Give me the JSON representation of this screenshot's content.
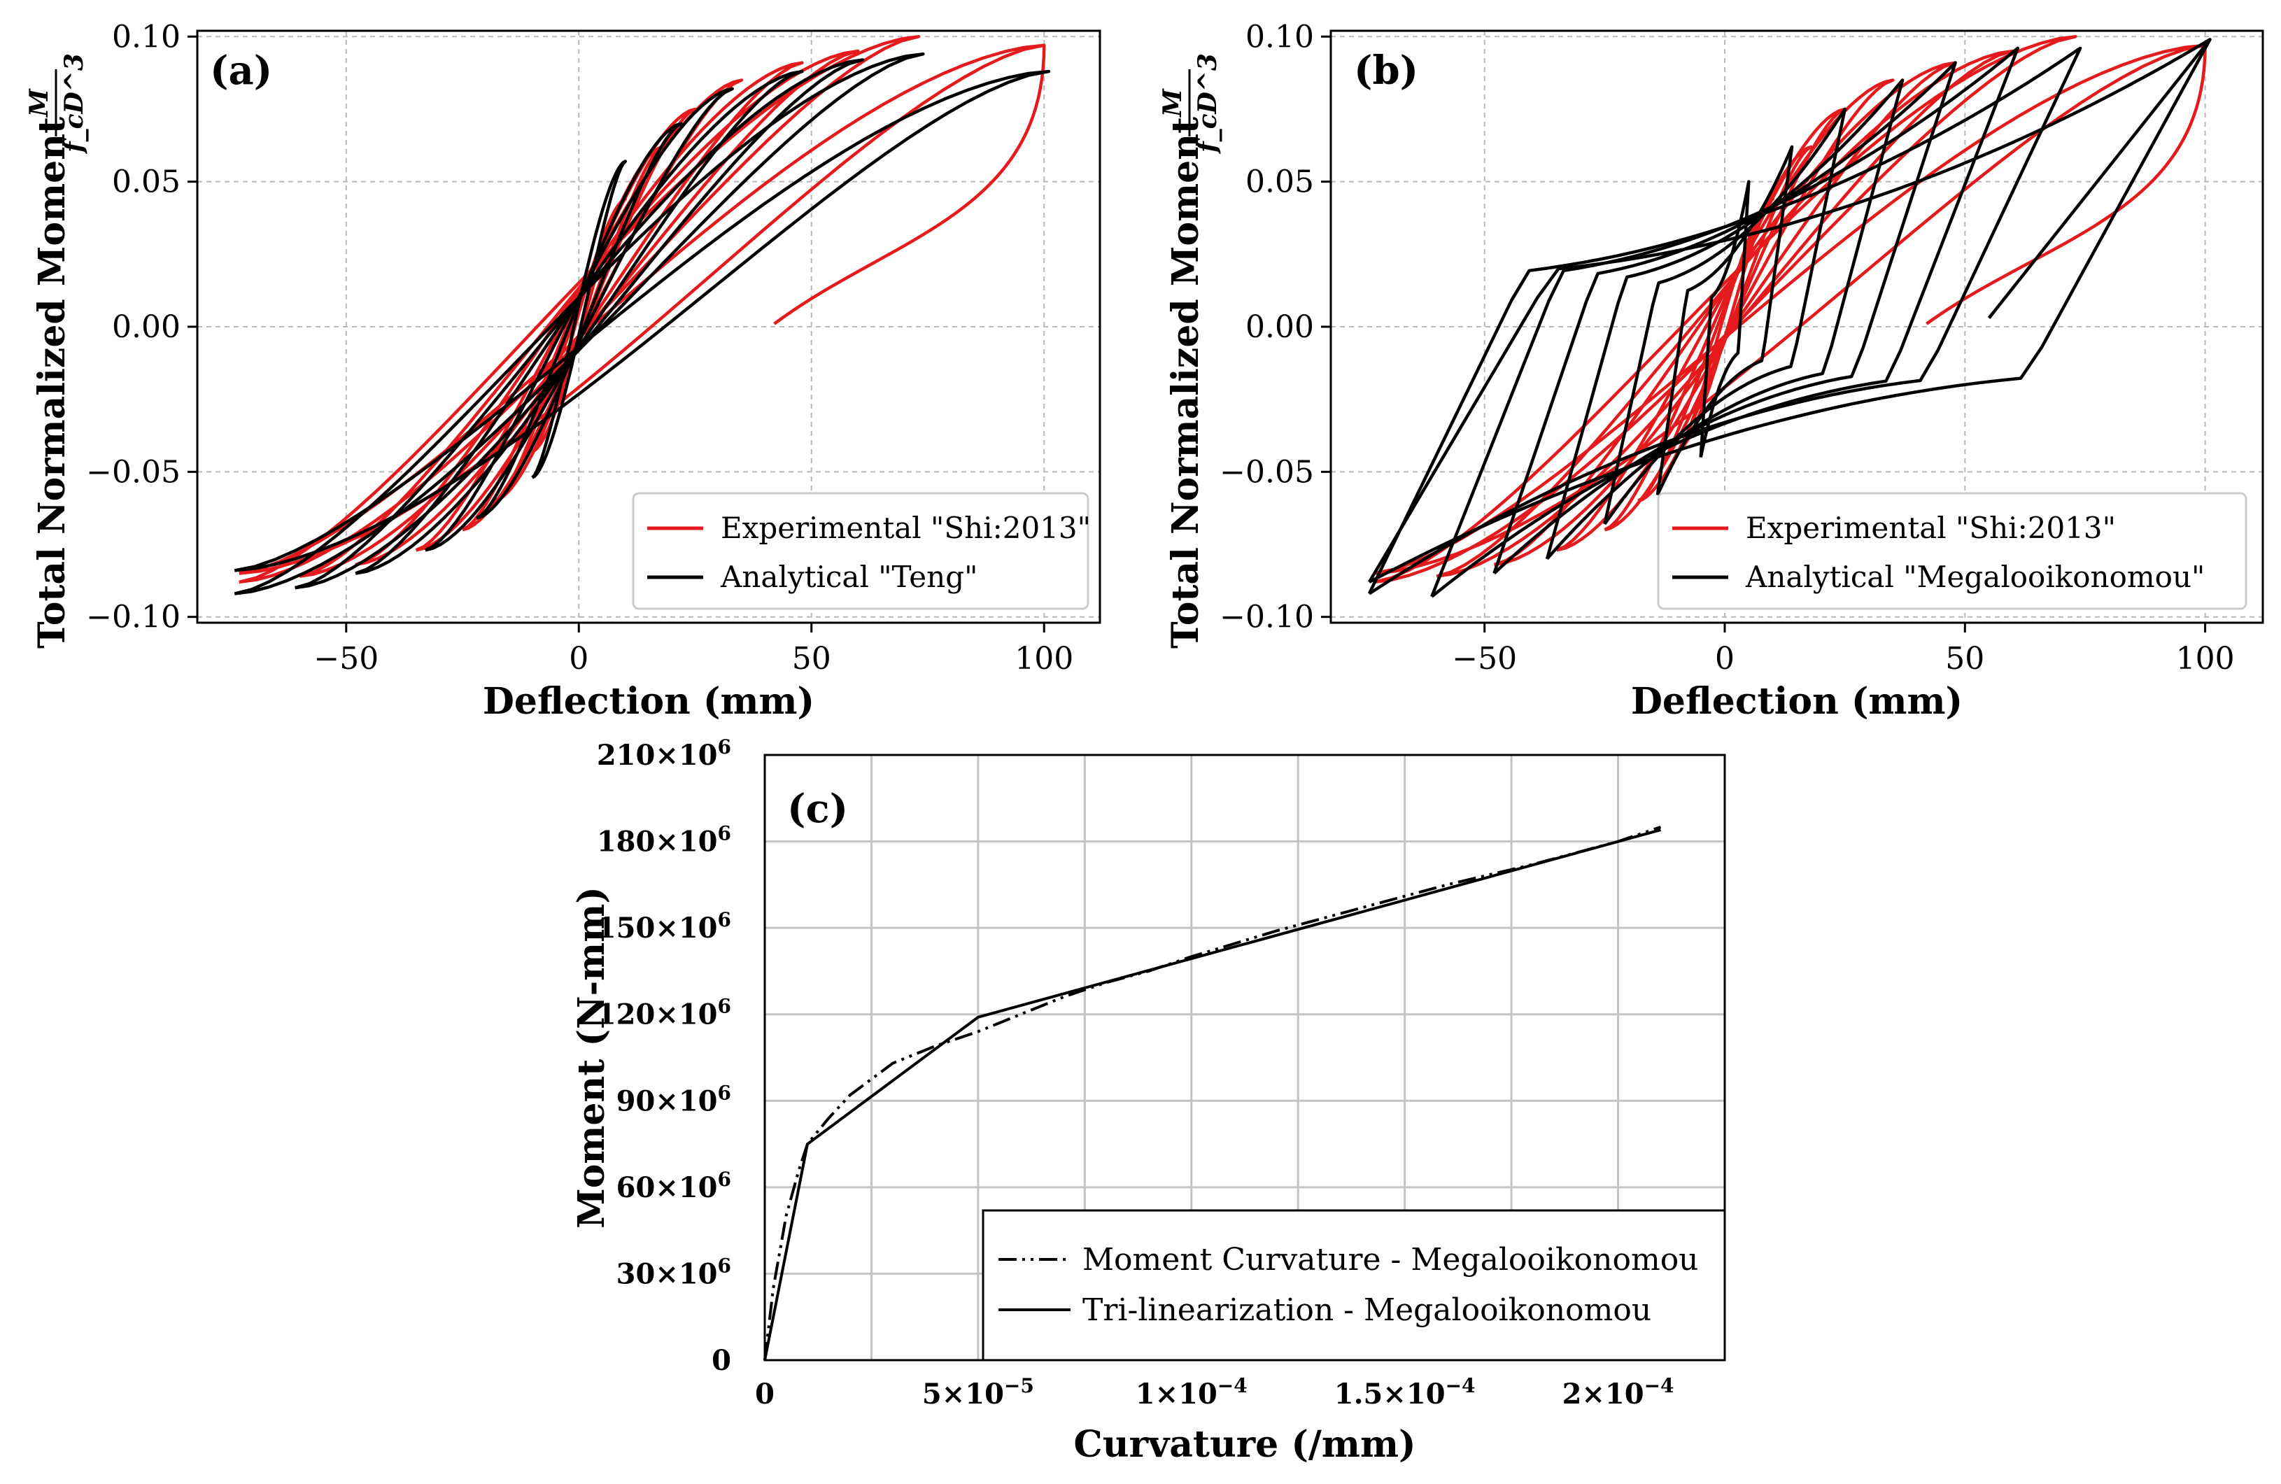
{
  "charts": [
    {
      "id": "a",
      "type": "line",
      "panel_label": "(a)",
      "xlabel": "Deflection (mm)",
      "ylabel": "Total Normalized Moment",
      "ylabel_fraction": {
        "numerator": "M",
        "denominator": "f_cD^3"
      },
      "xlim": [
        -82,
        112
      ],
      "ylim": [
        -0.102,
        0.102
      ],
      "x_ticks": [
        {
          "value": -50,
          "label": "−50"
        },
        {
          "value": 0,
          "label": "0"
        },
        {
          "value": 50,
          "label": "50"
        },
        {
          "value": 100,
          "label": "100"
        }
      ],
      "y_ticks": [
        {
          "value": -0.1,
          "label": "−0.10"
        },
        {
          "value": -0.05,
          "label": "−0.05"
        },
        {
          "value": 0,
          "label": "0.00"
        },
        {
          "value": 0.05,
          "label": "0.05"
        },
        {
          "value": 0.1,
          "label": "0.10"
        }
      ],
      "grid": true,
      "legend_position": "bottom-right",
      "series": [
        {
          "name": "Experimental \"Shi:2013\"",
          "color": "#e41a1c",
          "loops": [
            {
              "xmax": 10,
              "ymax": 0.044,
              "xmin": -10,
              "ymin": -0.043
            },
            {
              "xmax": 18,
              "ymax": 0.062,
              "xmin": -18,
              "ymin": -0.06
            },
            {
              "xmax": 25,
              "ymax": 0.075,
              "xmin": -25,
              "ymin": -0.07
            },
            {
              "xmax": 35,
              "ymax": 0.085,
              "xmin": -35,
              "ymin": -0.077
            },
            {
              "xmax": 48,
              "ymax": 0.091,
              "xmin": -48,
              "ymin": -0.082
            },
            {
              "xmax": 60,
              "ymax": 0.095,
              "xmin": -60,
              "ymin": -0.086
            },
            {
              "xmax": 73,
              "ymax": 0.1,
              "xmin": -73,
              "ymin": -0.088
            },
            {
              "xmax": 100,
              "ymax": 0.097,
              "xmin": -73,
              "ymin": -0.085
            }
          ],
          "unloading_tail": {
            "from_x": 100,
            "from_y": 0.097,
            "to_x": 42,
            "to_y": 0.001
          }
        },
        {
          "name": "Analytical \"Teng\"",
          "color": "#000000",
          "loops": [
            {
              "xmax": 10,
              "ymax": 0.057,
              "xmin": -10,
              "ymin": -0.052
            },
            {
              "xmax": 22,
              "ymax": 0.07,
              "xmin": -22,
              "ymin": -0.066
            },
            {
              "xmax": 33,
              "ymax": 0.082,
              "xmin": -33,
              "ymin": -0.077
            },
            {
              "xmax": 48,
              "ymax": 0.088,
              "xmin": -48,
              "ymin": -0.085
            },
            {
              "xmax": 61,
              "ymax": 0.092,
              "xmin": -61,
              "ymin": -0.09
            },
            {
              "xmax": 74,
              "ymax": 0.094,
              "xmin": -74,
              "ymin": -0.092
            },
            {
              "xmax": 101,
              "ymax": 0.088,
              "xmin": -74,
              "ymin": -0.084
            }
          ]
        }
      ]
    },
    {
      "id": "b",
      "type": "line",
      "panel_label": "(b)",
      "xlabel": "Deflection (mm)",
      "ylabel": "Total Normalized Moment",
      "ylabel_fraction": {
        "numerator": "M",
        "denominator": "f_cD^3"
      },
      "xlim": [
        -82,
        112
      ],
      "ylim": [
        -0.102,
        0.102
      ],
      "x_ticks": [
        {
          "value": -50,
          "label": "−50"
        },
        {
          "value": 0,
          "label": "0"
        },
        {
          "value": 50,
          "label": "50"
        },
        {
          "value": 100,
          "label": "100"
        }
      ],
      "y_ticks": [
        {
          "value": -0.1,
          "label": "−0.10"
        },
        {
          "value": -0.05,
          "label": "−0.05"
        },
        {
          "value": 0,
          "label": "0.00"
        },
        {
          "value": 0.05,
          "label": "0.05"
        },
        {
          "value": 0.1,
          "label": "0.10"
        }
      ],
      "grid": true,
      "legend_position": "bottom-right",
      "series": [
        {
          "name": "Experimental \"Shi:2013\"",
          "color": "#e41a1c",
          "loops": [
            {
              "xmax": 10,
              "ymax": 0.044,
              "xmin": -10,
              "ymin": -0.043
            },
            {
              "xmax": 18,
              "ymax": 0.062,
              "xmin": -18,
              "ymin": -0.06
            },
            {
              "xmax": 25,
              "ymax": 0.075,
              "xmin": -25,
              "ymin": -0.07
            },
            {
              "xmax": 35,
              "ymax": 0.085,
              "xmin": -35,
              "ymin": -0.077
            },
            {
              "xmax": 48,
              "ymax": 0.091,
              "xmin": -48,
              "ymin": -0.082
            },
            {
              "xmax": 60,
              "ymax": 0.095,
              "xmin": -60,
              "ymin": -0.086
            },
            {
              "xmax": 73,
              "ymax": 0.1,
              "xmin": -73,
              "ymin": -0.088
            },
            {
              "xmax": 100,
              "ymax": 0.097,
              "xmin": -73,
              "ymin": -0.085
            }
          ],
          "unloading_tail": {
            "from_x": 100,
            "from_y": 0.097,
            "to_x": 42,
            "to_y": 0.001
          }
        },
        {
          "name": "Analytical \"Megalooikonomou\"",
          "color": "#000000",
          "piecewise": true,
          "loops": [
            {
              "xmax": 5,
              "ymax": 0.05,
              "xmin": -5,
              "ymin": -0.045
            },
            {
              "xmax": 14,
              "ymax": 0.062,
              "xmin": -14,
              "ymin": -0.058
            },
            {
              "xmax": 25,
              "ymax": 0.075,
              "xmin": -25,
              "ymin": -0.068
            },
            {
              "xmax": 37,
              "ymax": 0.085,
              "xmin": -37,
              "ymin": -0.08
            },
            {
              "xmax": 48,
              "ymax": 0.091,
              "xmin": -48,
              "ymin": -0.085
            },
            {
              "xmax": 61,
              "ymax": 0.096,
              "xmin": -61,
              "ymin": -0.093
            },
            {
              "xmax": 74,
              "ymax": 0.096,
              "xmin": -74,
              "ymin": -0.092
            },
            {
              "xmax": 101,
              "ymax": 0.099,
              "xmin": -74,
              "ymin": -0.088
            }
          ],
          "unloading_tail": {
            "from_x": 101,
            "from_y": 0.099,
            "to_x": 55,
            "to_y": 0.003
          }
        }
      ]
    },
    {
      "id": "c",
      "type": "line",
      "panel_label": "(c)",
      "xlabel": "Curvature (/mm)",
      "ylabel": "Moment (N-mm)",
      "xlim": [
        0,
        0.000225
      ],
      "ylim": [
        0,
        210000000
      ],
      "x_ticks": [
        {
          "value": 0,
          "label": "0"
        },
        {
          "value": 5e-05,
          "mant": "5×10",
          "exp": "−5"
        },
        {
          "value": 0.0001,
          "mant": "1×10",
          "exp": "−4"
        },
        {
          "value": 0.00015,
          "mant": "1.5×10",
          "exp": "−4"
        },
        {
          "value": 0.0002,
          "mant": "2×10",
          "exp": "−4"
        }
      ],
      "x_grid_step": 2.5e-05,
      "y_ticks": [
        {
          "value": 0,
          "label": "0"
        },
        {
          "value": 30000000,
          "mant": "30×10",
          "exp": "6"
        },
        {
          "value": 60000000,
          "mant": "60×10",
          "exp": "6"
        },
        {
          "value": 90000000,
          "mant": "90×10",
          "exp": "6"
        },
        {
          "value": 120000000,
          "mant": "120×10",
          "exp": "6"
        },
        {
          "value": 150000000,
          "mant": "150×10",
          "exp": "6"
        },
        {
          "value": 180000000,
          "mant": "180×10",
          "exp": "6"
        },
        {
          "value": 210000000,
          "mant": "210×10",
          "exp": "6"
        }
      ],
      "grid": true,
      "legend_position": "bottom-right",
      "series": [
        {
          "name": "Moment Curvature - Megalooikonomou",
          "color": "#000000",
          "style": "dash-dot-dot",
          "x": [
            0,
            2e-06,
            5e-06,
            8e-06,
            1e-05,
            1.5e-05,
            2e-05,
            3e-05,
            4e-05,
            5e-05,
            6e-05,
            7e-05,
            8e-05,
            9e-05,
            0.0001,
            0.00012,
            0.00014,
            0.00016,
            0.00018,
            0.0002,
            0.00021
          ],
          "y": [
            0,
            25000000,
            50000000,
            66000000,
            75000000,
            84000000,
            92000000,
            103000000,
            109000000,
            114000000,
            120000000,
            126000000,
            131000000,
            135000000,
            140000000,
            149000000,
            157000000,
            165000000,
            172000000,
            180000000,
            185000000
          ]
        },
        {
          "name": "Tri-linearization - Megalooikonomou",
          "color": "#000000",
          "style": "solid",
          "x": [
            0,
            1e-05,
            5e-05,
            0.00021
          ],
          "y": [
            0,
            75000000,
            119000000,
            184000000
          ]
        }
      ]
    }
  ]
}
